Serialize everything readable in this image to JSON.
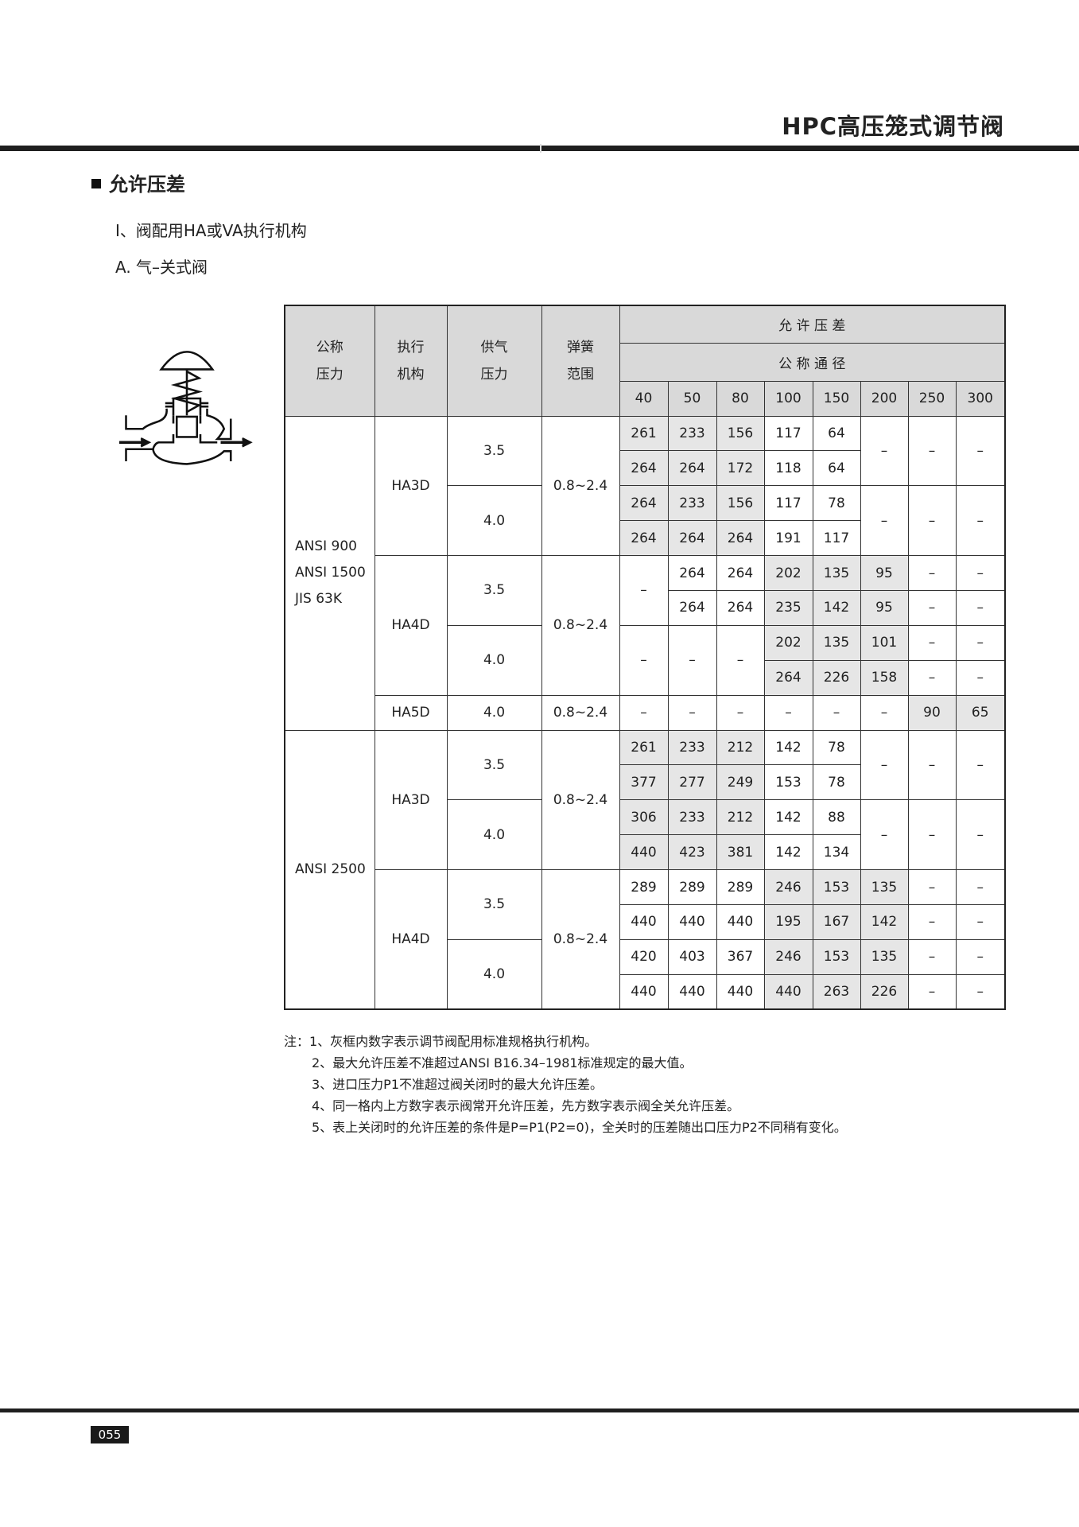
{
  "header": {
    "title": "HPC高压笼式调节阀"
  },
  "section": {
    "title": "允许压差",
    "subtitle_1": "I、阀配用HA或VA执行机构",
    "subtitle_2": "A. 气–关式阀"
  },
  "diagram": {
    "icon": "air-to-close-valve-diagram"
  },
  "table": {
    "headers": {
      "nominal_pressure": "公称\n压力",
      "actuator": "执行\n机构",
      "supply_pressure": "供气\n压力",
      "spring_range": "弹簧\n范围",
      "allowable_dp": "允 许 压 差",
      "nominal_diameter": "公 称 通 径",
      "sizes": [
        "40",
        "50",
        "80",
        "100",
        "150",
        "200",
        "250",
        "300"
      ]
    },
    "shaded_color": "#e6e6e6",
    "rows": [
      [
        {
          "t": "ANSI 900\nANSI 1500\nJIS 63K",
          "grp": true
        },
        {
          "t": "HA3D"
        },
        {
          "t": "3.5"
        },
        {
          "t": "0.8~2.4"
        },
        {
          "t": "261",
          "std": true
        },
        {
          "t": "233",
          "std": true
        },
        {
          "t": "156",
          "std": true
        },
        {
          "t": "117"
        },
        {
          "t": "64"
        },
        {
          "t": "–"
        },
        {
          "t": "–"
        },
        {
          "t": "–"
        }
      ],
      [
        {
          "t": "264",
          "std": true
        },
        {
          "t": "264",
          "std": true
        },
        {
          "t": "172",
          "std": true
        },
        {
          "t": "118"
        },
        {
          "t": "64"
        }
      ],
      [
        {
          "t": "4.0"
        },
        {
          "t": "264",
          "std": true
        },
        {
          "t": "233",
          "std": true
        },
        {
          "t": "156",
          "std": true
        },
        {
          "t": "117"
        },
        {
          "t": "78"
        },
        {
          "t": "–"
        },
        {
          "t": "–"
        },
        {
          "t": "–"
        }
      ],
      [
        {
          "t": "264",
          "std": true
        },
        {
          "t": "264",
          "std": true
        },
        {
          "t": "264",
          "std": true
        },
        {
          "t": "191"
        },
        {
          "t": "117"
        }
      ],
      [
        {
          "t": "HA4D"
        },
        {
          "t": "3.5"
        },
        {
          "t": "0.8~2.4"
        },
        {
          "t": "–"
        },
        {
          "t": "264"
        },
        {
          "t": "264"
        },
        {
          "t": "202",
          "std": true
        },
        {
          "t": "135",
          "std": true
        },
        {
          "t": "95",
          "std": true
        },
        {
          "t": "–"
        },
        {
          "t": "–"
        }
      ],
      [
        {
          "t": "264"
        },
        {
          "t": "264"
        },
        {
          "t": "235",
          "std": true
        },
        {
          "t": "142",
          "std": true
        },
        {
          "t": "95",
          "std": true
        },
        {
          "t": "–"
        },
        {
          "t": "–"
        }
      ],
      [
        {
          "t": "4.0"
        },
        {
          "t": "–"
        },
        {
          "t": "–"
        },
        {
          "t": "–"
        },
        {
          "t": "202",
          "std": true
        },
        {
          "t": "135",
          "std": true
        },
        {
          "t": "101",
          "std": true
        },
        {
          "t": "–"
        },
        {
          "t": "–"
        }
      ],
      [
        {
          "t": "264",
          "std": true
        },
        {
          "t": "226",
          "std": true
        },
        {
          "t": "158",
          "std": true
        },
        {
          "t": "–"
        },
        {
          "t": "–"
        }
      ],
      [
        {
          "t": "HA5D"
        },
        {
          "t": "4.0"
        },
        {
          "t": "0.8~2.4"
        },
        {
          "t": "–"
        },
        {
          "t": "–"
        },
        {
          "t": "–"
        },
        {
          "t": "–"
        },
        {
          "t": "–"
        },
        {
          "t": "–"
        },
        {
          "t": "90",
          "std": true
        },
        {
          "t": "65",
          "std": true
        }
      ],
      [
        {
          "t": "ANSI 2500",
          "grp": true
        },
        {
          "t": "HA3D"
        },
        {
          "t": "3.5"
        },
        {
          "t": "0.8~2.4"
        },
        {
          "t": "261",
          "std": true
        },
        {
          "t": "233",
          "std": true
        },
        {
          "t": "212",
          "std": true
        },
        {
          "t": "142"
        },
        {
          "t": "78"
        },
        {
          "t": "–"
        },
        {
          "t": "–"
        },
        {
          "t": "–"
        }
      ],
      [
        {
          "t": "377",
          "std": true
        },
        {
          "t": "277",
          "std": true
        },
        {
          "t": "249",
          "std": true
        },
        {
          "t": "153"
        },
        {
          "t": "78"
        }
      ],
      [
        {
          "t": "4.0"
        },
        {
          "t": "306",
          "std": true
        },
        {
          "t": "233",
          "std": true
        },
        {
          "t": "212",
          "std": true
        },
        {
          "t": "142"
        },
        {
          "t": "88"
        },
        {
          "t": "–"
        },
        {
          "t": "–"
        },
        {
          "t": "–"
        }
      ],
      [
        {
          "t": "440",
          "std": true
        },
        {
          "t": "423",
          "std": true
        },
        {
          "t": "381",
          "std": true
        },
        {
          "t": "142"
        },
        {
          "t": "134"
        }
      ],
      [
        {
          "t": "HA4D"
        },
        {
          "t": "3.5"
        },
        {
          "t": "0.8~2.4"
        },
        {
          "t": "289"
        },
        {
          "t": "289"
        },
        {
          "t": "289"
        },
        {
          "t": "246",
          "std": true
        },
        {
          "t": "153",
          "std": true
        },
        {
          "t": "135",
          "std": true
        },
        {
          "t": "–"
        },
        {
          "t": "–"
        }
      ],
      [
        {
          "t": "440"
        },
        {
          "t": "440"
        },
        {
          "t": "440"
        },
        {
          "t": "195",
          "std": true
        },
        {
          "t": "167",
          "std": true
        },
        {
          "t": "142",
          "std": true
        },
        {
          "t": "–"
        },
        {
          "t": "–"
        }
      ],
      [
        {
          "t": "4.0"
        },
        {
          "t": "420"
        },
        {
          "t": "403"
        },
        {
          "t": "367"
        },
        {
          "t": "246",
          "std": true
        },
        {
          "t": "153",
          "std": true
        },
        {
          "t": "135",
          "std": true
        },
        {
          "t": "–"
        },
        {
          "t": "–"
        }
      ],
      [
        {
          "t": "440"
        },
        {
          "t": "440"
        },
        {
          "t": "440"
        },
        {
          "t": "440",
          "std": true
        },
        {
          "t": "263",
          "std": true
        },
        {
          "t": "226",
          "std": true
        },
        {
          "t": "–"
        },
        {
          "t": "–"
        }
      ]
    ]
  },
  "notes": [
    "注：1、灰框内数字表示调节阀配用标准规格执行机构。",
    "2、最大允许压差不准超过ANSI B16.34–1981标准规定的最大值。",
    "3、进口压力P1不准超过阀关闭时的最大允许压差。",
    "4、同一格内上方数字表示阀常开允许压差，先方数字表示阀全关允许压差。",
    "5、表上关闭时的允许压差的条件是P=P1(P2=0)，全关时的压差随出口压力P2不同稍有变化。"
  ],
  "footer": {
    "page_number": "055"
  }
}
